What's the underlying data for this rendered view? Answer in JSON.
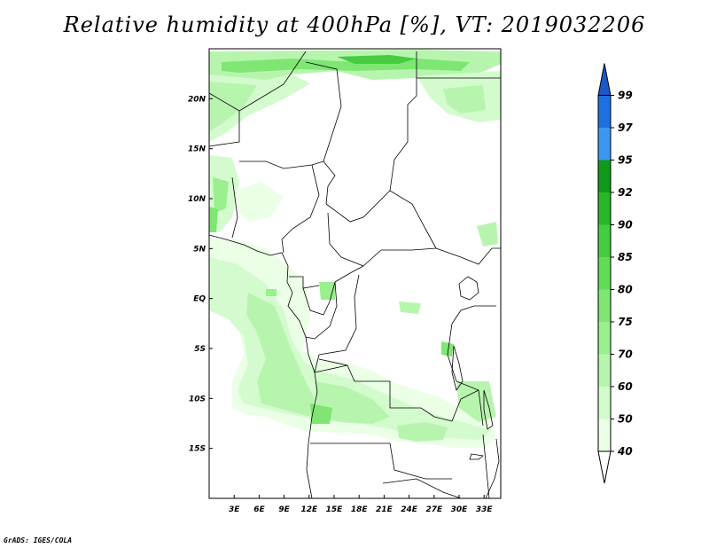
{
  "title": "Relative humidity at 400hPa [%], VT: 2019032206",
  "credit": "GrADS: IGES/COLA",
  "map": {
    "lon_range": [
      0,
      35
    ],
    "lat_range": [
      -20,
      25
    ],
    "lat_ticks": [
      {
        "value": 20,
        "label": "20N"
      },
      {
        "value": 15,
        "label": "15N"
      },
      {
        "value": 10,
        "label": "10N"
      },
      {
        "value": 5,
        "label": "5N"
      },
      {
        "value": 0,
        "label": "EQ"
      },
      {
        "value": -5,
        "label": "5S"
      },
      {
        "value": -10,
        "label": "10S"
      },
      {
        "value": -15,
        "label": "15S"
      }
    ],
    "lon_ticks": [
      {
        "value": 3,
        "label": "3E"
      },
      {
        "value": 6,
        "label": "6E"
      },
      {
        "value": 9,
        "label": "9E"
      },
      {
        "value": 12,
        "label": "12E"
      },
      {
        "value": 15,
        "label": "15E"
      },
      {
        "value": 18,
        "label": "18E"
      },
      {
        "value": 21,
        "label": "21E"
      },
      {
        "value": 24,
        "label": "24E"
      },
      {
        "value": 27,
        "label": "27E"
      },
      {
        "value": 30,
        "label": "30E"
      },
      {
        "value": 33,
        "label": "33E"
      }
    ]
  },
  "colorbar": {
    "levels": [
      {
        "label": "40",
        "color": "#eaffe6"
      },
      {
        "label": "50",
        "color": "#d3fbcd"
      },
      {
        "label": "60",
        "color": "#b7f5ae"
      },
      {
        "label": "70",
        "color": "#9aef8e"
      },
      {
        "label": "75",
        "color": "#7fe673"
      },
      {
        "label": "80",
        "color": "#62db57"
      },
      {
        "label": "85",
        "color": "#45cc40"
      },
      {
        "label": "90",
        "color": "#29b72a"
      },
      {
        "label": "92",
        "color": "#12991a"
      },
      {
        "label": "95",
        "color": "#3d97f0"
      },
      {
        "label": "97",
        "color": "#1f6fe0"
      },
      {
        "label": "99",
        "color": ""
      }
    ],
    "lower_color": "#ffffff",
    "upper_color": "#1b58cc"
  }
}
